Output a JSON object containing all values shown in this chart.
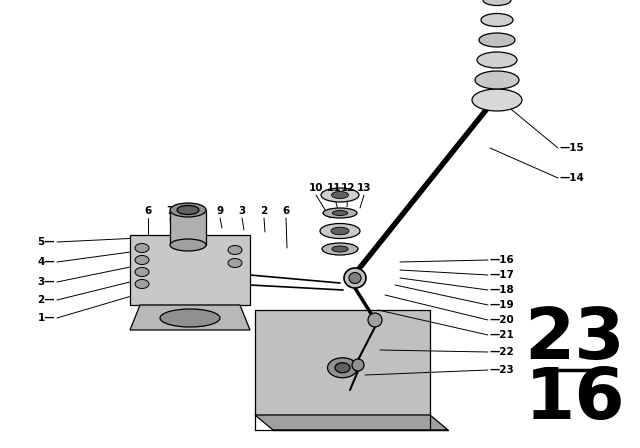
{
  "bg_color": "#ffffff",
  "diagram_number_top": "23",
  "diagram_number_bottom": "16",
  "line_color": "#000000"
}
